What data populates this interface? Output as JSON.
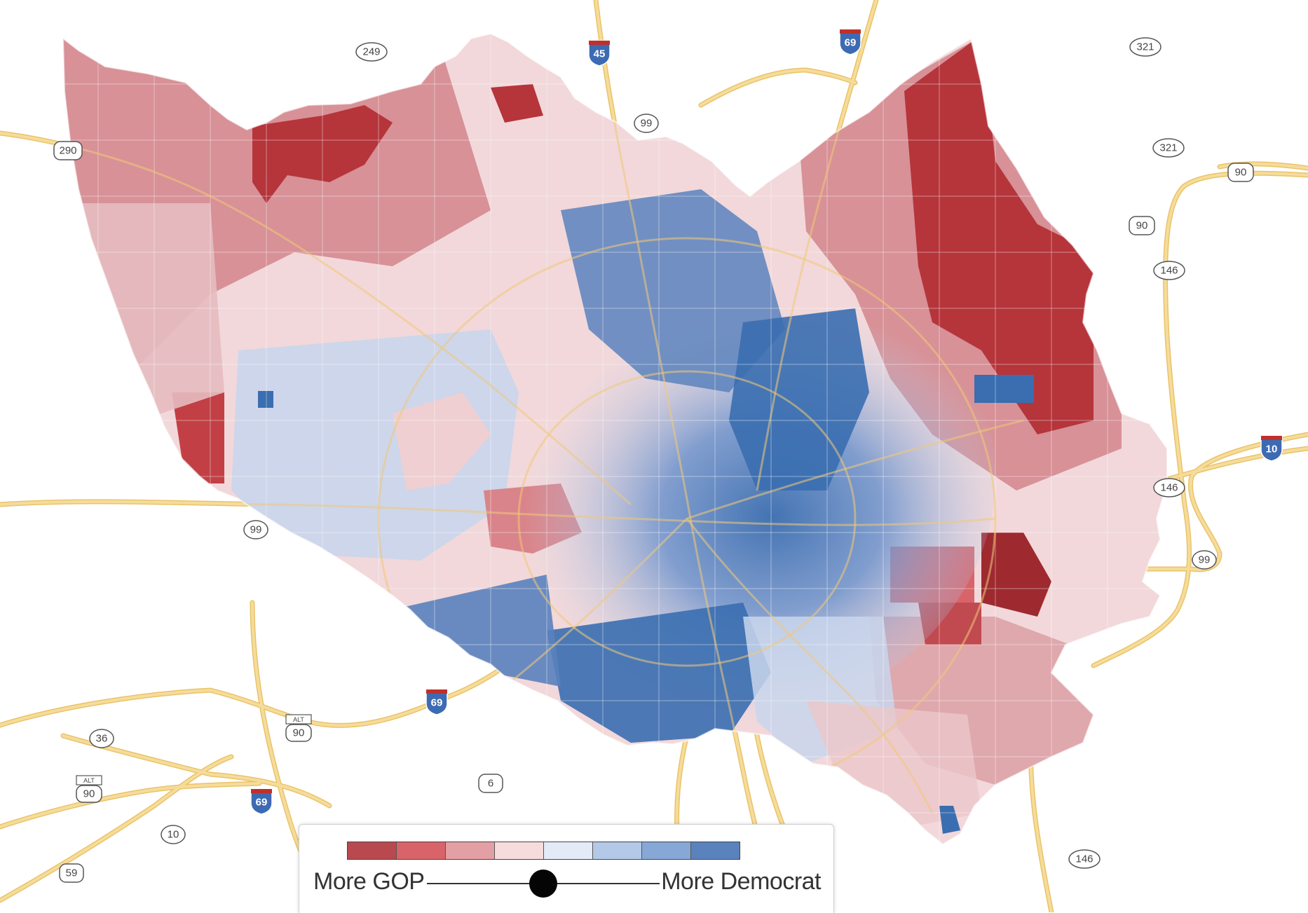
{
  "map": {
    "type": "choropleth",
    "region": "county precincts",
    "colors": {
      "background": "#ffffff",
      "road": "#f4d58d",
      "road_edge": "#e9c36a",
      "interstate_shield": "#3d6bb3",
      "interstate_band": "#c0302b",
      "gop_strong": "#b5353b",
      "dem_strong": "#3a6eb0"
    }
  },
  "legend": {
    "left_label": "More GOP",
    "right_label": "More Democrat",
    "bins": [
      "#b84a4f",
      "#d8646a",
      "#e3a0a4",
      "#f6dcdd",
      "#e4ebf6",
      "#b4c9e8",
      "#87a7d6",
      "#5a82bd"
    ],
    "slider_value": 0.5
  },
  "highway_shields": [
    {
      "label": "249",
      "kind": "state"
    },
    {
      "label": "45",
      "kind": "interstate"
    },
    {
      "label": "69",
      "kind": "interstate"
    },
    {
      "label": "321",
      "kind": "state"
    },
    {
      "label": "290",
      "kind": "us"
    },
    {
      "label": "99",
      "kind": "state"
    },
    {
      "label": "321",
      "kind": "state"
    },
    {
      "label": "90",
      "kind": "us"
    },
    {
      "label": "90",
      "kind": "us"
    },
    {
      "label": "146",
      "kind": "state"
    },
    {
      "label": "10",
      "kind": "interstate"
    },
    {
      "label": "146",
      "kind": "state"
    },
    {
      "label": "99",
      "kind": "state"
    },
    {
      "label": "99",
      "kind": "state"
    },
    {
      "label": "69",
      "kind": "interstate"
    },
    {
      "label": "ALT 90",
      "kind": "us-alt"
    },
    {
      "label": "36",
      "kind": "state"
    },
    {
      "label": "ALT 90",
      "kind": "us-alt"
    },
    {
      "label": "69",
      "kind": "interstate"
    },
    {
      "label": "6",
      "kind": "us"
    },
    {
      "label": "10",
      "kind": "state"
    },
    {
      "label": "59",
      "kind": "us"
    },
    {
      "label": "146",
      "kind": "state"
    }
  ]
}
